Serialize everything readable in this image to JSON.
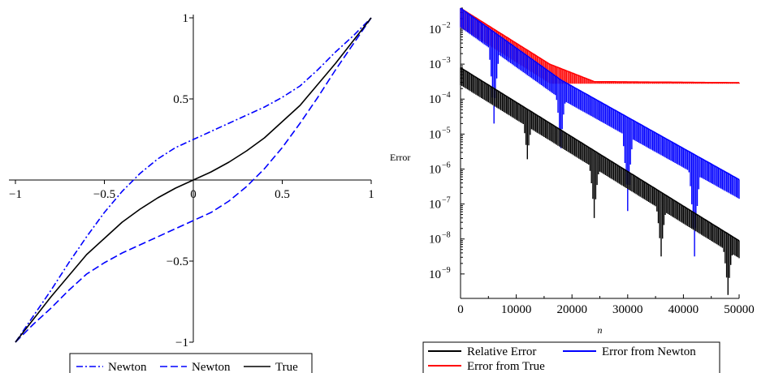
{
  "chart_data": [
    {
      "type": "line",
      "xlim": [
        -1,
        1
      ],
      "ylim": [
        -1,
        1
      ],
      "x_ticks": [
        "-1",
        "-0.5",
        "0",
        "0.5",
        "1"
      ],
      "y_ticks": [
        "-1",
        "-0.5",
        "0.5",
        "1"
      ],
      "grid": false,
      "legend_placement": "bottom",
      "series": [
        {
          "name": "Newton",
          "style": "dash-dot",
          "color": "#0000ff",
          "x": [
            -1,
            -0.9,
            -0.8,
            -0.7,
            -0.6,
            -0.5,
            -0.4,
            -0.3,
            -0.2,
            -0.1,
            0,
            0.1,
            0.2,
            0.3,
            0.4,
            0.5,
            0.6,
            0.7,
            0.8,
            0.9,
            1
          ],
          "y": [
            -1,
            -0.84,
            -0.68,
            -0.51,
            -0.35,
            -0.2,
            -0.07,
            0.04,
            0.13,
            0.2,
            0.25,
            0.3,
            0.35,
            0.4,
            0.45,
            0.51,
            0.58,
            0.68,
            0.79,
            0.89,
            1
          ]
        },
        {
          "name": "Newton",
          "style": "dash",
          "color": "#0000ff",
          "x": [
            -1,
            -0.9,
            -0.8,
            -0.7,
            -0.6,
            -0.5,
            -0.4,
            -0.3,
            -0.2,
            -0.1,
            0,
            0.1,
            0.2,
            0.3,
            0.4,
            0.5,
            0.6,
            0.7,
            0.8,
            0.9,
            1
          ],
          "y": [
            -1,
            -0.89,
            -0.79,
            -0.68,
            -0.58,
            -0.51,
            -0.45,
            -0.4,
            -0.35,
            -0.3,
            -0.25,
            -0.2,
            -0.13,
            -0.04,
            0.07,
            0.2,
            0.35,
            0.51,
            0.68,
            0.84,
            1
          ]
        },
        {
          "name": "True",
          "style": "solid",
          "color": "#000000",
          "x": [
            -1,
            -0.9,
            -0.8,
            -0.7,
            -0.6,
            -0.5,
            -0.4,
            -0.3,
            -0.2,
            -0.1,
            0,
            0.1,
            0.2,
            0.3,
            0.4,
            0.5,
            0.6,
            0.7,
            0.8,
            0.9,
            1
          ],
          "y": [
            -1,
            -0.86,
            -0.72,
            -0.59,
            -0.46,
            -0.36,
            -0.26,
            -0.18,
            -0.11,
            -0.05,
            0,
            0.05,
            0.11,
            0.18,
            0.26,
            0.36,
            0.46,
            0.59,
            0.72,
            0.86,
            1
          ]
        }
      ]
    },
    {
      "type": "line",
      "xlabel": "n",
      "ylabel": "Error",
      "xlim": [
        0,
        50000
      ],
      "ylim": [
        2e-10,
        0.04
      ],
      "yscale": "log",
      "x_ticks": [
        "0",
        "10000",
        "20000",
        "30000",
        "40000",
        "50000"
      ],
      "y_ticks": [
        -9,
        -8,
        -7,
        -6,
        -5,
        -4,
        -3,
        -2
      ],
      "y_tick_base": "10",
      "grid": false,
      "legend_placement": "bottom",
      "series": [
        {
          "name": "Relative Error",
          "color": "#000000",
          "env_x": [
            0,
            49000
          ],
          "env_log10": [
            -3.1,
            -7.95
          ],
          "dips_x": [
            12000,
            24000,
            36000,
            48000
          ],
          "dips_log10": [
            -5.72,
            -7.4,
            -8.5,
            -9.6
          ]
        },
        {
          "name": "Error from Newton",
          "color": "#0000ff",
          "env_x": [
            0,
            18000,
            50000
          ],
          "env_log10": [
            -1.4,
            -3.45,
            -6.3
          ],
          "dips_x": [
            6000,
            18000,
            30000,
            42000
          ],
          "dips_log10": [
            -4.7,
            -5.4,
            -7.2,
            -8.5
          ]
        },
        {
          "name": "Error from True",
          "color": "#ff0000",
          "env_x": [
            0,
            16000,
            24000,
            50000
          ],
          "env_log10": [
            -1.4,
            -3.0,
            -3.5,
            -3.53
          ],
          "floor_log10": -3.53
        }
      ]
    }
  ],
  "legend_left": [
    "Newton",
    "Newton",
    "True"
  ],
  "legend_right": [
    "Relative Error",
    "Error from Newton",
    "Error from True"
  ]
}
